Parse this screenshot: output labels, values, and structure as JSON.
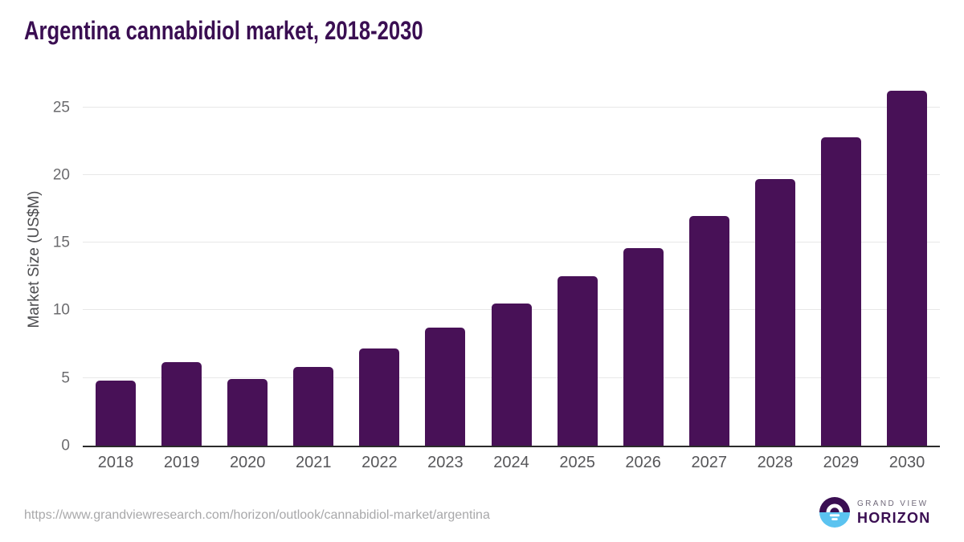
{
  "title": "Argentina cannabidiol market, 2018-2030",
  "chart_data": {
    "type": "bar",
    "title": "Argentina cannabidiol market, 2018-2030",
    "categories": [
      "2018",
      "2019",
      "2020",
      "2021",
      "2022",
      "2023",
      "2024",
      "2025",
      "2026",
      "2027",
      "2028",
      "2029",
      "2030"
    ],
    "values": [
      4.8,
      6.2,
      4.9,
      5.8,
      7.2,
      8.7,
      10.5,
      12.5,
      14.6,
      17.0,
      19.7,
      22.8,
      26.2
    ],
    "xlabel": "",
    "ylabel": "Market Size (US$M)",
    "ylim": [
      0,
      27
    ],
    "yticks": [
      0,
      5,
      10,
      15,
      20,
      25
    ],
    "grid": true,
    "legend": false,
    "bar_color": "#481157"
  },
  "footer": {
    "source_url": "https://www.grandviewresearch.com/horizon/outlook/cannabidiol-market/argentina",
    "logo": {
      "line1": "GRAND VIEW",
      "line2": "HORIZON"
    }
  },
  "colors": {
    "brand_purple": "#3A0E52",
    "bar_purple": "#481157",
    "logo_blue": "#5BC3F0",
    "grid_line": "#E8E8E8",
    "source_text": "#A8A8AA",
    "axis_text": "#565659"
  }
}
